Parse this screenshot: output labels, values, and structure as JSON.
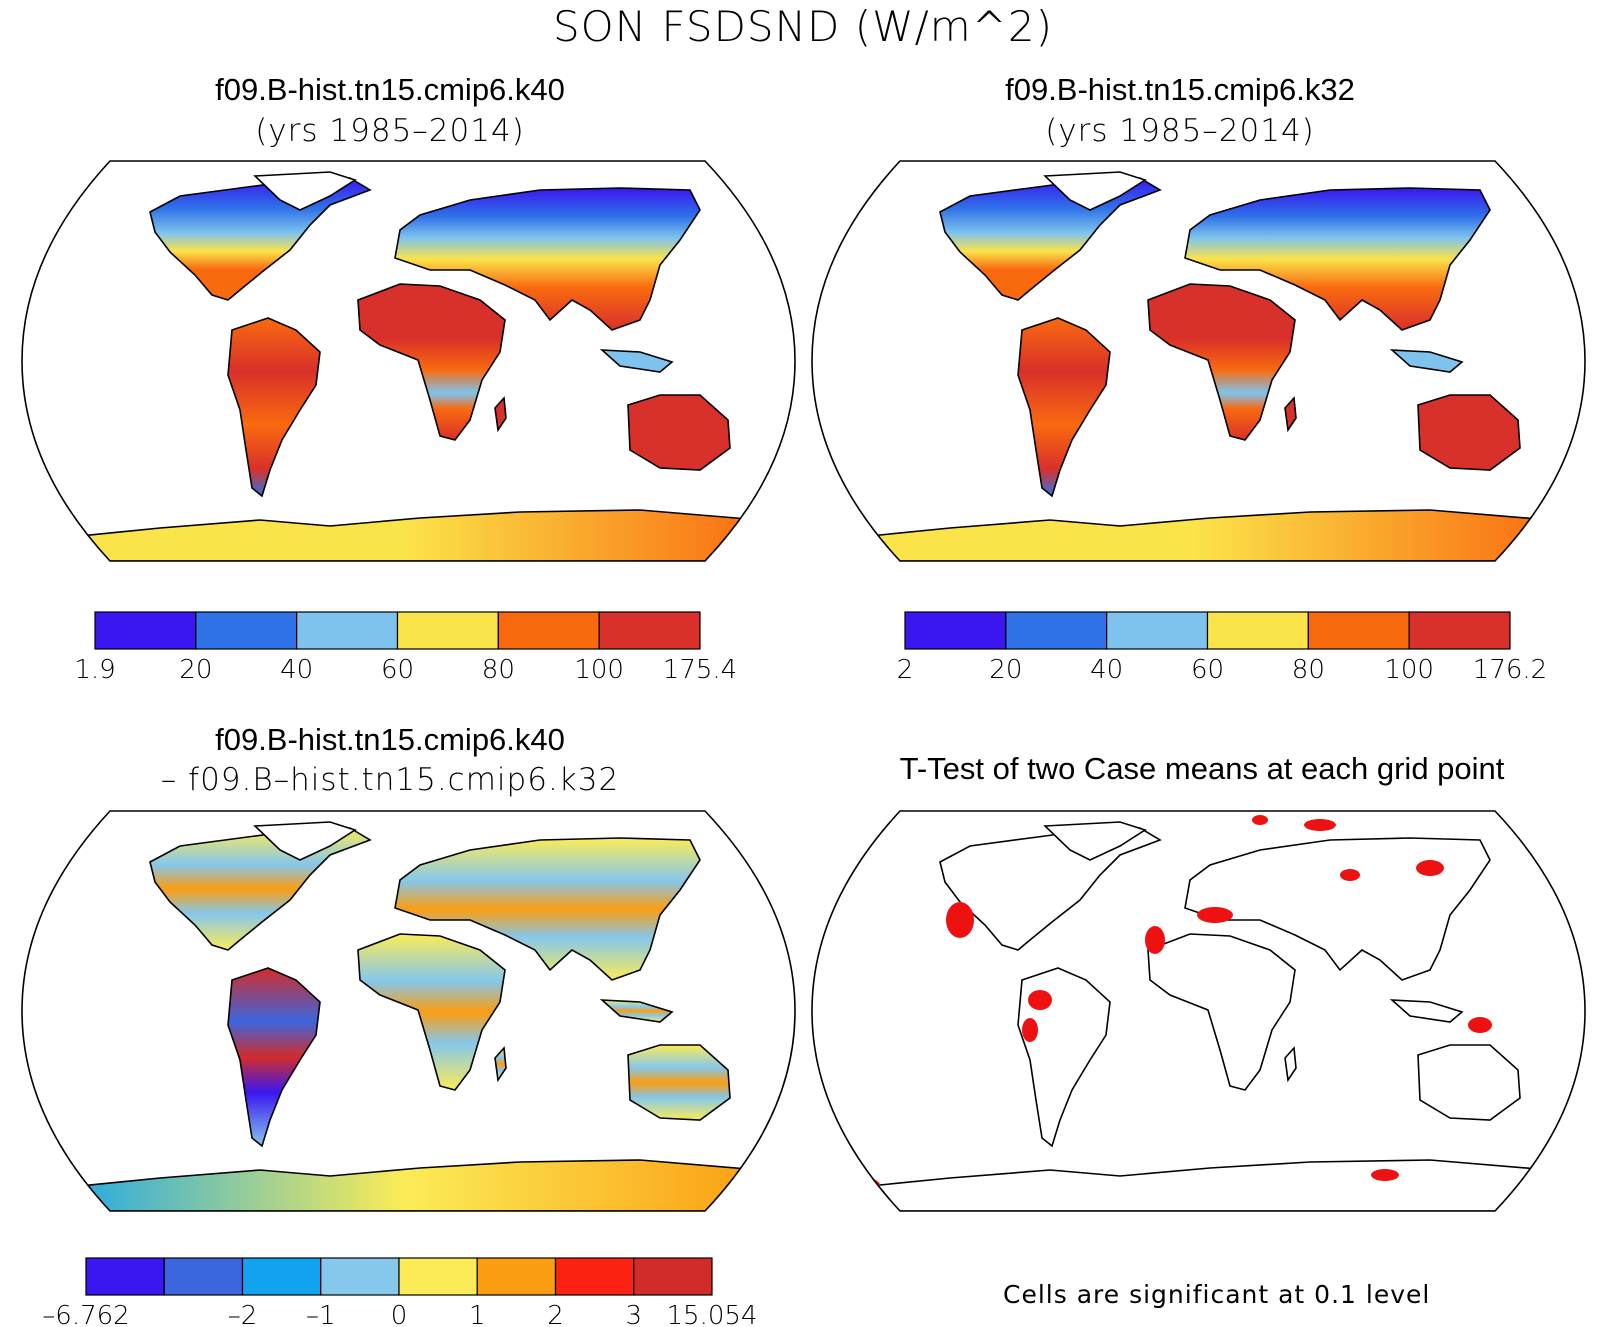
{
  "figure_title": "SON FSDSND (W/m^2)",
  "panels": [
    {
      "id": "case1",
      "title_line1": "f09.B-hist.tn15.cmip6.k40",
      "title_line2": "(yrs 1985–2014)",
      "colorbar": {
        "colors": [
          "#3a17f0",
          "#2f72e8",
          "#7ec3ee",
          "#fbe34a",
          "#f96a0f",
          "#d8302a"
        ],
        "labels": [
          "1.9",
          "20",
          "40",
          "60",
          "80",
          "100",
          "175.4"
        ]
      }
    },
    {
      "id": "case2",
      "title_line1": "f09.B-hist.tn15.cmip6.k32",
      "title_line2": "(yrs 1985–2014)",
      "colorbar": {
        "colors": [
          "#3a17f0",
          "#2f72e8",
          "#7ec3ee",
          "#fbe34a",
          "#f96a0f",
          "#d8302a"
        ],
        "labels": [
          "2",
          "20",
          "40",
          "60",
          "80",
          "100",
          "176.2"
        ]
      }
    },
    {
      "id": "diff",
      "title_line1": "f09.B-hist.tn15.cmip6.k40",
      "title_line2": "– f09.B–hist.tn15.cmip6.k32",
      "colorbar": {
        "colors": [
          "#3a17f0",
          "#3b66de",
          "#12a3f0",
          "#86c7ec",
          "#fbec57",
          "#fb9d11",
          "#fb2212",
          "#d22c2a"
        ],
        "labels": [
          "–6.762",
          "",
          "–2",
          "–1",
          "0",
          "1",
          "2",
          "3",
          "15.054"
        ]
      }
    },
    {
      "id": "ttest",
      "title_line1": "T-Test of two Case means at each grid point",
      "title_line2": "",
      "footnote": "Cells are significant at 0.1 level",
      "significant_color": "#ee1111"
    }
  ]
}
